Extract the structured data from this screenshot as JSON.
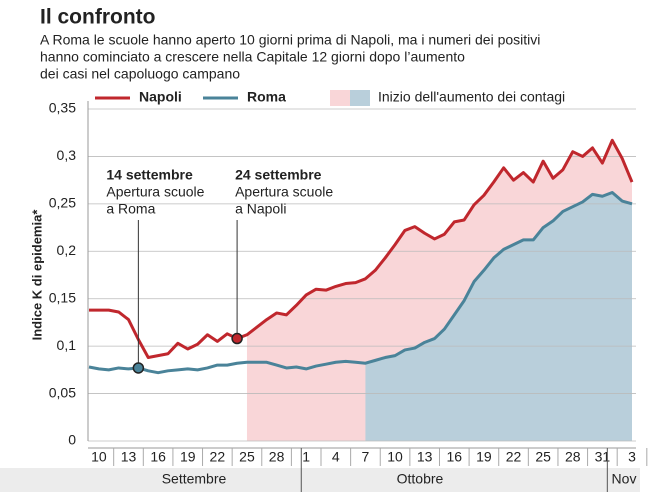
{
  "chart_data": {
    "type": "line",
    "title": "Il confronto",
    "subtitle": [
      "A Roma le scuole hanno aperto 10 giorni prima di Napoli, ma i numeri dei positivi",
      "hanno cominciato a crescere nella Capitale 12 giorni dopo l’aumento",
      "dei casi nel capoluogo campano"
    ],
    "y_label": "Indice K di epidemia*",
    "highlight_label": "Inizio dell'aumento dei contagi",
    "months": [
      "Settembre",
      "Ottobre",
      "Nov"
    ],
    "categories": [
      null,
      "10",
      null,
      null,
      "13",
      null,
      null,
      "16",
      null,
      null,
      "19",
      null,
      null,
      "22",
      null,
      null,
      "25",
      null,
      null,
      "28",
      null,
      null,
      "1",
      null,
      null,
      "4",
      null,
      null,
      "7",
      null,
      null,
      "10",
      null,
      null,
      "13",
      null,
      null,
      "16",
      null,
      null,
      "19",
      null,
      null,
      "22",
      null,
      null,
      "25",
      null,
      null,
      "28",
      null,
      null,
      "31",
      null,
      null,
      "3"
    ],
    "series": [
      {
        "name": "Napoli",
        "color": "#c0272d",
        "fill": "#f9d6d8",
        "highlight_start": 16,
        "values": [
          0.138,
          0.138,
          0.138,
          0.136,
          0.128,
          0.107,
          0.088,
          0.09,
          0.092,
          0.103,
          0.097,
          0.102,
          0.112,
          0.105,
          0.113,
          0.108,
          0.112,
          0.12,
          0.128,
          0.135,
          0.133,
          0.143,
          0.154,
          0.16,
          0.159,
          0.163,
          0.166,
          0.167,
          0.171,
          0.18,
          0.193,
          0.207,
          0.222,
          0.226,
          0.219,
          0.213,
          0.218,
          0.231,
          0.233,
          0.249,
          0.259,
          0.273,
          0.288,
          0.275,
          0.283,
          0.273,
          0.295,
          0.277,
          0.286,
          0.305,
          0.3,
          0.309,
          0.293,
          0.317,
          0.298,
          0.273
        ]
      },
      {
        "name": "Roma",
        "color": "#4a8399",
        "fill": "#b9cfdb",
        "highlight_start": 28,
        "values": [
          0.078,
          0.076,
          0.075,
          0.077,
          0.076,
          0.077,
          0.074,
          0.072,
          0.074,
          0.075,
          0.076,
          0.075,
          0.077,
          0.08,
          0.08,
          0.082,
          0.083,
          0.083,
          0.083,
          0.08,
          0.077,
          0.078,
          0.076,
          0.079,
          0.081,
          0.083,
          0.084,
          0.083,
          0.082,
          0.085,
          0.088,
          0.09,
          0.096,
          0.098,
          0.104,
          0.108,
          0.118,
          0.133,
          0.148,
          0.168,
          0.18,
          0.193,
          0.202,
          0.207,
          0.212,
          0.212,
          0.225,
          0.232,
          0.242,
          0.247,
          0.252,
          0.26,
          0.258,
          0.262,
          0.253,
          0.25
        ]
      }
    ],
    "annotations": [
      {
        "series": 1,
        "index": 5,
        "title": "14 settembre",
        "lines": [
          "Apertura scuole",
          "a Roma"
        ]
      },
      {
        "series": 0,
        "index": 15,
        "title": "24 settembre",
        "lines": [
          "Apertura scuole",
          "a Napoli"
        ]
      }
    ],
    "ylim": [
      0,
      0.35
    ],
    "yticks": [
      0,
      {
        "value": 0.05,
        "label": "0,05"
      },
      {
        "value": 0.1,
        "label": "0,1"
      },
      {
        "value": 0.15,
        "label": "0,15"
      },
      {
        "value": 0.2,
        "label": "0,2"
      },
      {
        "value": 0.25,
        "label": "0,25"
      },
      {
        "value": 0.3,
        "label": "0,3"
      },
      {
        "value": 0.35,
        "label": "0,35"
      }
    ],
    "grid": true
  }
}
